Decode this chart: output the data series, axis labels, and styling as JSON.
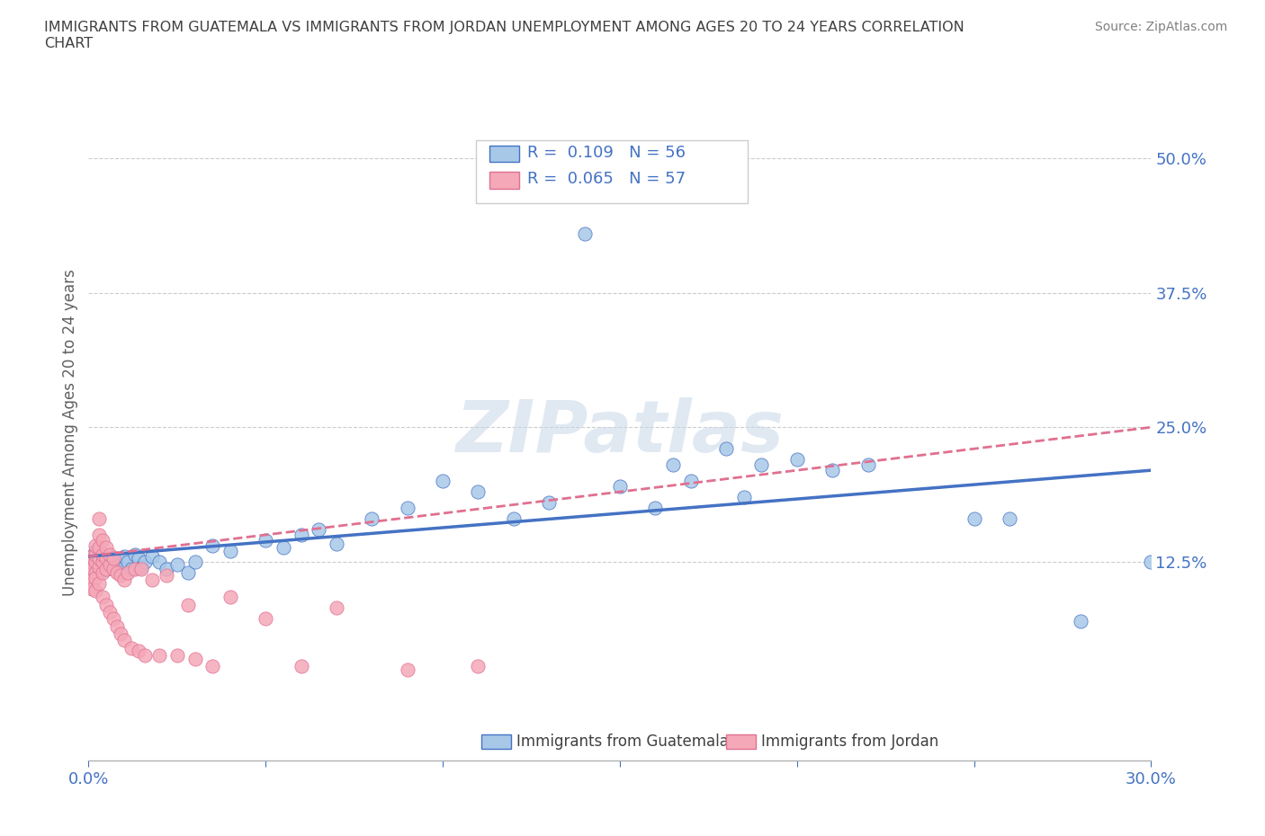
{
  "title": "IMMIGRANTS FROM GUATEMALA VS IMMIGRANTS FROM JORDAN UNEMPLOYMENT AMONG AGES 20 TO 24 YEARS CORRELATION\nCHART",
  "source": "Source: ZipAtlas.com",
  "ylabel": "Unemployment Among Ages 20 to 24 years",
  "xlim": [
    0.0,
    0.3
  ],
  "ylim": [
    -0.06,
    0.55
  ],
  "color_guatemala": "#a8c8e8",
  "color_jordan": "#f4a8b8",
  "color_trendline_guatemala": "#4472c4",
  "color_trendline_jordan": "#e07090",
  "color_tick_labels": "#4472c4",
  "watermark": "ZIPatlas",
  "background_color": "#ffffff",
  "guatemala_x": [
    0.001,
    0.001,
    0.002,
    0.002,
    0.003,
    0.003,
    0.004,
    0.004,
    0.005,
    0.005,
    0.006,
    0.007,
    0.008,
    0.009,
    0.01,
    0.01,
    0.011,
    0.012,
    0.013,
    0.014,
    0.015,
    0.016,
    0.018,
    0.02,
    0.022,
    0.025,
    0.028,
    0.03,
    0.035,
    0.04,
    0.05,
    0.055,
    0.06,
    0.065,
    0.07,
    0.08,
    0.09,
    0.1,
    0.11,
    0.12,
    0.13,
    0.14,
    0.15,
    0.16,
    0.165,
    0.17,
    0.18,
    0.185,
    0.19,
    0.2,
    0.21,
    0.22,
    0.25,
    0.26,
    0.28,
    0.3
  ],
  "guatemala_y": [
    0.125,
    0.13,
    0.12,
    0.135,
    0.128,
    0.115,
    0.125,
    0.132,
    0.118,
    0.125,
    0.13,
    0.122,
    0.128,
    0.115,
    0.12,
    0.13,
    0.125,
    0.118,
    0.132,
    0.128,
    0.12,
    0.125,
    0.13,
    0.125,
    0.118,
    0.122,
    0.115,
    0.125,
    0.14,
    0.135,
    0.145,
    0.138,
    0.15,
    0.155,
    0.142,
    0.165,
    0.175,
    0.2,
    0.19,
    0.165,
    0.18,
    0.43,
    0.195,
    0.175,
    0.215,
    0.2,
    0.23,
    0.185,
    0.215,
    0.22,
    0.21,
    0.215,
    0.165,
    0.165,
    0.07,
    0.125
  ],
  "jordan_x": [
    0.001,
    0.001,
    0.001,
    0.001,
    0.001,
    0.002,
    0.002,
    0.002,
    0.002,
    0.002,
    0.002,
    0.003,
    0.003,
    0.003,
    0.003,
    0.003,
    0.003,
    0.004,
    0.004,
    0.004,
    0.004,
    0.004,
    0.005,
    0.005,
    0.005,
    0.005,
    0.006,
    0.006,
    0.006,
    0.007,
    0.007,
    0.007,
    0.008,
    0.008,
    0.009,
    0.009,
    0.01,
    0.01,
    0.011,
    0.012,
    0.013,
    0.014,
    0.015,
    0.016,
    0.018,
    0.02,
    0.022,
    0.025,
    0.028,
    0.03,
    0.035,
    0.04,
    0.05,
    0.06,
    0.07,
    0.09,
    0.11
  ],
  "jordan_y": [
    0.125,
    0.13,
    0.118,
    0.108,
    0.1,
    0.115,
    0.125,
    0.132,
    0.14,
    0.11,
    0.098,
    0.12,
    0.128,
    0.138,
    0.15,
    0.165,
    0.105,
    0.115,
    0.125,
    0.132,
    0.145,
    0.092,
    0.118,
    0.128,
    0.138,
    0.085,
    0.122,
    0.132,
    0.078,
    0.118,
    0.128,
    0.072,
    0.115,
    0.065,
    0.112,
    0.058,
    0.108,
    0.052,
    0.115,
    0.045,
    0.118,
    0.042,
    0.118,
    0.038,
    0.108,
    0.038,
    0.112,
    0.038,
    0.085,
    0.035,
    0.028,
    0.092,
    0.072,
    0.028,
    0.082,
    0.025,
    0.028
  ]
}
